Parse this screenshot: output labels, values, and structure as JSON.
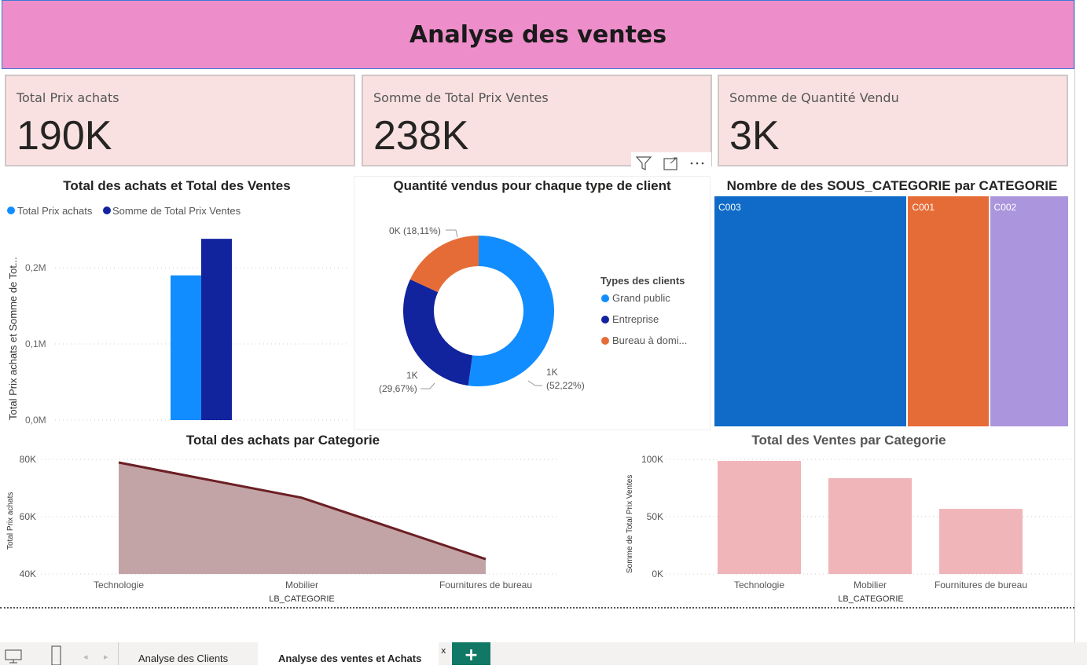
{
  "header": {
    "title": "Analyse des ventes"
  },
  "kpis": [
    {
      "label": "Total Prix achats",
      "value": "190K"
    },
    {
      "label": "Somme de Total Prix Ventes",
      "value": "238K"
    },
    {
      "label": "Somme de Quantité Vendu",
      "value": "3K"
    }
  ],
  "visual_header_icons": [
    "filter-icon",
    "focus-mode-icon",
    "more-options-icon"
  ],
  "tabs": {
    "items": [
      {
        "label": "Analyse des Clients"
      },
      {
        "label": "Analyse des ventes et Achats",
        "active": true
      }
    ],
    "close": "x",
    "add": "+"
  },
  "colors": {
    "header": "#ED8ECA",
    "card": "#F9E1E1",
    "light_blue": "#118DFF",
    "dark_blue": "#12239E",
    "orange": "#E66C37",
    "purple": "#AB95DD",
    "mid_blue": "#0F6BC7",
    "area": "#6B1F24",
    "bar_pink": "#EFB5B9",
    "tab_add": "#117865"
  },
  "chart_data": [
    {
      "type": "bar",
      "title": "Total des achats et Total des Ventes",
      "ylabel": "Total Prix achats et Somme de Tot...",
      "yticks": [
        "0,0M",
        "0,1M",
        "0,2M"
      ],
      "ylim": [
        0,
        0.25
      ],
      "grid": true,
      "legend": "top-left",
      "series": [
        {
          "name": "Total Prix achats",
          "values": [
            0.19
          ],
          "color": "#118DFF"
        },
        {
          "name": "Somme de Total Prix Ventes",
          "values": [
            0.238
          ],
          "color": "#12239E"
        }
      ]
    },
    {
      "type": "pie",
      "title": "Quantité vendus pour chaque type de client",
      "legend_title": "Types des clients",
      "legend": "right",
      "slices": [
        {
          "name": "Grand public",
          "percent": 52.22,
          "label": "1K",
          "pct_label": "(52,22%)",
          "color": "#118DFF"
        },
        {
          "name": "Entreprise",
          "percent": 29.67,
          "label": "1K",
          "pct_label": "(29,67%)",
          "color": "#12239E"
        },
        {
          "name": "Bureau à domi...",
          "percent": 18.11,
          "label": "0K (18,11%)",
          "pct_label": "",
          "color": "#E66C37"
        }
      ]
    },
    {
      "type": "treemap",
      "title": "Nombre de des SOUS_CATEGORIE par CATEGORIE",
      "items": [
        {
          "name": "C003",
          "share": 0.548,
          "color": "#0F6BC7"
        },
        {
          "name": "C001",
          "share": 0.229,
          "color": "#E66C37"
        },
        {
          "name": "C002",
          "share": 0.223,
          "color": "#AB95DD"
        }
      ]
    },
    {
      "type": "area",
      "title": "Total des achats par Categorie",
      "xlabel": "LB_CATEGORIE",
      "ylabel": "Total Prix achats",
      "categories": [
        "Technologie",
        "Mobilier",
        "Fournitures de bureau"
      ],
      "values": [
        78900,
        66600,
        45200
      ],
      "ylim": [
        40000,
        80000
      ],
      "yticks": [
        "40K",
        "60K",
        "80K"
      ],
      "grid": true
    },
    {
      "type": "bar",
      "title": "Total des Ventes par Categorie",
      "xlabel": "LB_CATEGORIE",
      "ylabel": "Somme de Total Prix Ventes",
      "categories": [
        "Technologie",
        "Mobilier",
        "Fournitures de bureau"
      ],
      "values": [
        98600,
        83600,
        56800
      ],
      "ylim": [
        0,
        100000
      ],
      "yticks": [
        "0K",
        "50K",
        "100K"
      ],
      "grid": true
    }
  ]
}
